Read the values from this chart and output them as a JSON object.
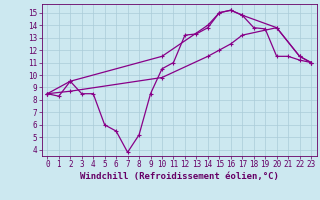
{
  "xlabel": "Windchill (Refroidissement éolien,°C)",
  "background_color": "#cce8f0",
  "grid_color": "#aaccd8",
  "line_color": "#880088",
  "xlim": [
    -0.5,
    23.5
  ],
  "ylim": [
    3.5,
    15.7
  ],
  "xticks": [
    0,
    1,
    2,
    3,
    4,
    5,
    6,
    7,
    8,
    9,
    10,
    11,
    12,
    13,
    14,
    15,
    16,
    17,
    18,
    19,
    20,
    21,
    22,
    23
  ],
  "yticks": [
    4,
    5,
    6,
    7,
    8,
    9,
    10,
    11,
    12,
    13,
    14,
    15
  ],
  "line1_x": [
    0,
    1,
    2,
    3,
    4,
    5,
    6,
    7,
    8,
    9,
    10,
    11,
    12,
    13,
    14,
    15,
    16,
    17,
    18,
    19,
    20,
    21,
    22,
    23
  ],
  "line1_y": [
    8.5,
    8.3,
    9.5,
    8.5,
    8.5,
    6.0,
    5.5,
    3.8,
    5.2,
    8.5,
    10.5,
    11.0,
    13.2,
    13.3,
    13.8,
    15.0,
    15.2,
    14.8,
    13.8,
    13.7,
    11.5,
    11.5,
    11.2,
    11.0
  ],
  "line2_x": [
    0,
    2,
    10,
    14,
    15,
    16,
    17,
    20,
    22,
    23
  ],
  "line2_y": [
    8.5,
    9.5,
    11.5,
    14.0,
    15.0,
    15.2,
    14.8,
    13.8,
    11.5,
    11.0
  ],
  "line3_x": [
    0,
    2,
    10,
    14,
    15,
    16,
    17,
    20,
    22,
    23
  ],
  "line3_y": [
    8.5,
    8.7,
    9.8,
    11.5,
    12.0,
    12.5,
    13.2,
    13.8,
    11.5,
    11.0
  ],
  "font_color": "#660066",
  "tick_fontsize": 5.5,
  "xlabel_fontsize": 6.5
}
